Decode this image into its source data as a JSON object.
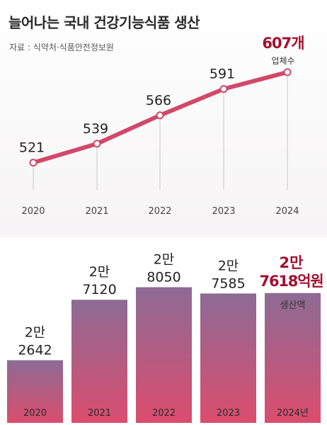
{
  "title": "늘어나는 국내 건강기능식품 생산",
  "source": "자료 : 식약처·식품안전정보원",
  "colors": {
    "accent": "#d2486a",
    "accent_dark": "#a4102f",
    "bar_top": "#8d6b95",
    "bar_bottom": "#db4d6e"
  },
  "chart_data": [
    {
      "type": "line",
      "x": [
        "2020",
        "2021",
        "2022",
        "2023",
        "2024"
      ],
      "values": [
        521,
        539,
        566,
        591,
        607
      ],
      "value_labels": [
        "521",
        "539",
        "566",
        "591",
        "607개"
      ],
      "unit_label": "업체수",
      "ylim": [
        510,
        615
      ],
      "grid": false,
      "legend": "none"
    },
    {
      "type": "bar",
      "categories": [
        "2020",
        "2021",
        "2022",
        "2023",
        "2024년"
      ],
      "values": [
        22642,
        27120,
        28050,
        27585,
        27618
      ],
      "value_labels": [
        [
          "2만",
          "2642"
        ],
        [
          "2만",
          "7120"
        ],
        [
          "2만",
          "8050"
        ],
        [
          "2만",
          "7585"
        ],
        [
          "2만",
          "7618억원"
        ]
      ],
      "unit_label": "생산액",
      "ylim": [
        18000,
        28600
      ],
      "grid": false,
      "legend": "none"
    }
  ]
}
